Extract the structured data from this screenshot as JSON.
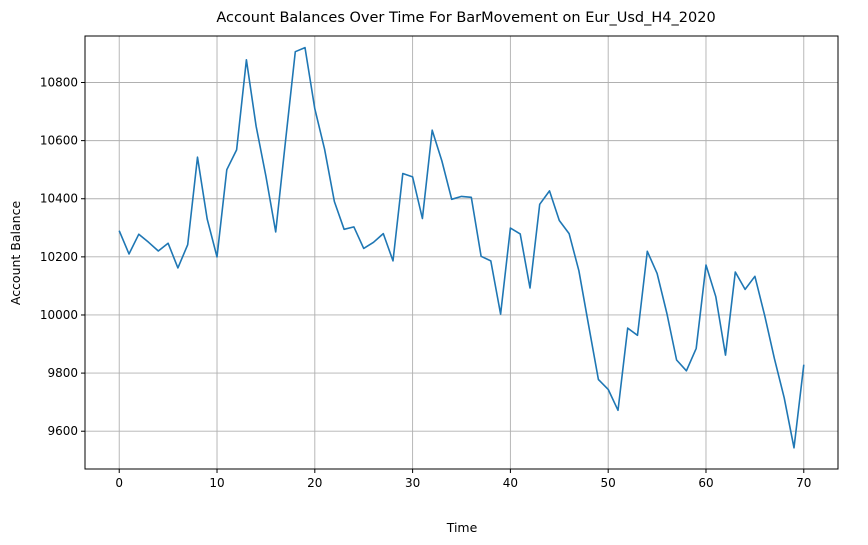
{
  "chart_data": {
    "type": "line",
    "title": "Account Balances Over Time For BarMovement on Eur_Usd_H4_2020",
    "xlabel": "Time",
    "ylabel": "Account Balance",
    "xlim": [
      -3.5,
      73.5
    ],
    "ylim": [
      9470,
      10960
    ],
    "xticks": [
      0,
      10,
      20,
      30,
      40,
      50,
      60,
      70
    ],
    "yticks": [
      9600,
      9800,
      10000,
      10200,
      10400,
      10600,
      10800
    ],
    "grid": true,
    "color": "#1f77b4",
    "x": [
      0,
      1,
      2,
      3,
      4,
      5,
      6,
      7,
      8,
      9,
      10,
      11,
      12,
      13,
      14,
      15,
      16,
      17,
      18,
      19,
      20,
      21,
      22,
      23,
      24,
      25,
      26,
      27,
      28,
      29,
      30,
      31,
      32,
      33,
      34,
      35,
      36,
      37,
      38,
      39,
      40,
      41,
      42,
      43,
      44,
      45,
      46,
      47,
      48,
      49,
      50,
      51,
      52,
      53,
      54,
      55,
      56,
      57,
      58,
      59,
      60,
      61,
      62,
      63,
      64,
      65,
      66,
      67,
      68,
      69,
      70
    ],
    "y": [
      10290,
      10210,
      10278,
      10250,
      10220,
      10247,
      10162,
      10242,
      10543,
      10330,
      10200,
      10500,
      10568,
      10878,
      10650,
      10478,
      10286,
      10598,
      10906,
      10920,
      10710,
      10570,
      10390,
      10295,
      10303,
      10229,
      10250,
      10280,
      10186,
      10487,
      10475,
      10332,
      10636,
      10530,
      10398,
      10408,
      10405,
      10202,
      10186,
      10003,
      10299,
      10279,
      10093,
      10381,
      10427,
      10325,
      10280,
      10152,
      9965,
      9778,
      9744,
      9672,
      9955,
      9930,
      10219,
      10143,
      10005,
      9845,
      9808,
      9885,
      10172,
      10063,
      9862,
      10148,
      10088,
      10133,
      9998,
      9850,
      9715,
      9543,
      9829
    ]
  }
}
